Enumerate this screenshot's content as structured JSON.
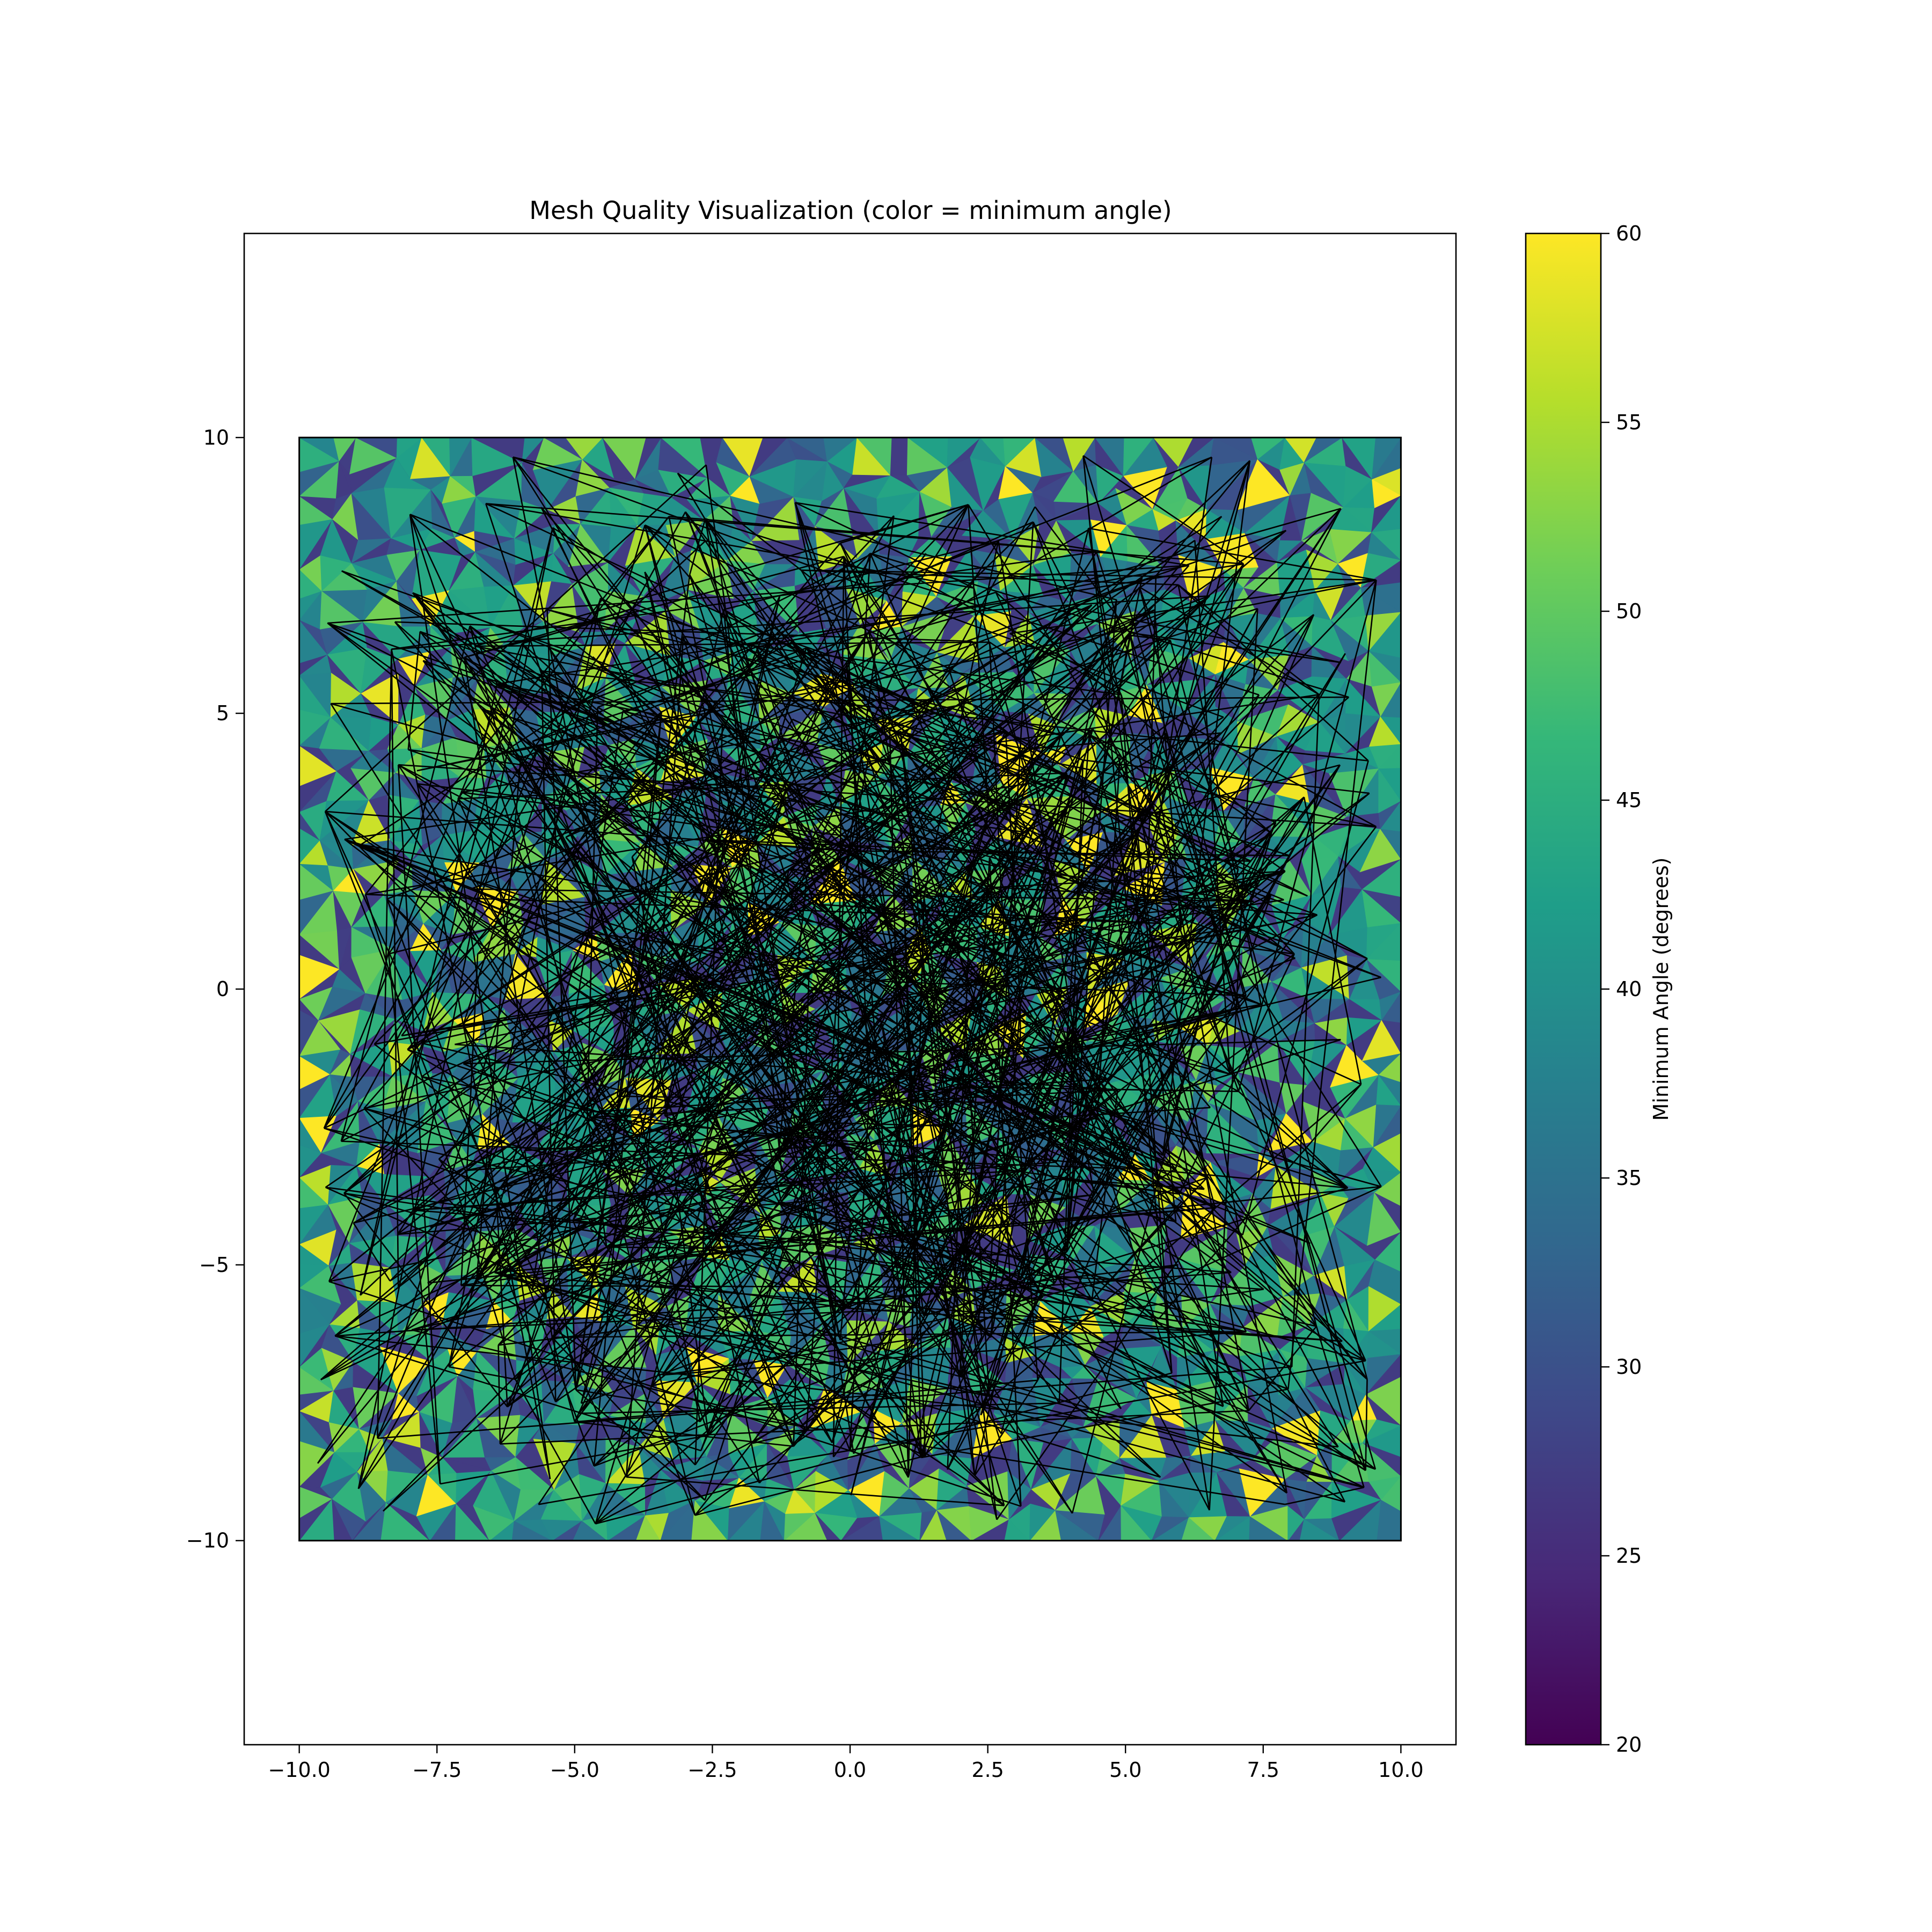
{
  "chart_data": {
    "type": "heatmap",
    "title": "Mesh Quality Visualization (color = minimum angle)",
    "xlabel": "",
    "ylabel": "",
    "xlim": [
      -11,
      11
    ],
    "ylim": [
      -13.7,
      13.7
    ],
    "x_ticks": [
      -10.0,
      -7.5,
      -5.0,
      -2.5,
      0.0,
      2.5,
      5.0,
      7.5,
      10.0
    ],
    "x_tick_labels": [
      "−10.0",
      "−7.5",
      "−5.0",
      "−2.5",
      "0.0",
      "2.5",
      "5.0",
      "7.5",
      "10.0"
    ],
    "y_ticks": [
      -10,
      -5,
      0,
      5,
      10
    ],
    "y_tick_labels": [
      "−10",
      "−5",
      "0",
      "5",
      "10"
    ],
    "domain": {
      "xmin": -10,
      "xmax": 10,
      "ymin": -10,
      "ymax": 10
    },
    "colormap": "viridis",
    "colorbar": {
      "label": "Minimum Angle (degrees)",
      "min": 20,
      "max": 60,
      "ticks": [
        20,
        25,
        30,
        35,
        40,
        45,
        50,
        55,
        60
      ],
      "tick_labels": [
        "20",
        "25",
        "30",
        "35",
        "40",
        "45",
        "50",
        "55",
        "60"
      ]
    },
    "colors": {
      "viridis_stops": [
        "#440154",
        "#482878",
        "#3e4989",
        "#31688e",
        "#26828e",
        "#1f9e89",
        "#35b779",
        "#6ece58",
        "#b5de2b",
        "#fde725"
      ],
      "edge": "#000000"
    },
    "observed_min_angle_range": [
      27,
      60
    ],
    "boundary_vertices": [
      [
        -10,
        10
      ],
      [
        10,
        10
      ],
      [
        10,
        -10
      ],
      [
        -10,
        -10
      ]
    ],
    "grid": false
  }
}
